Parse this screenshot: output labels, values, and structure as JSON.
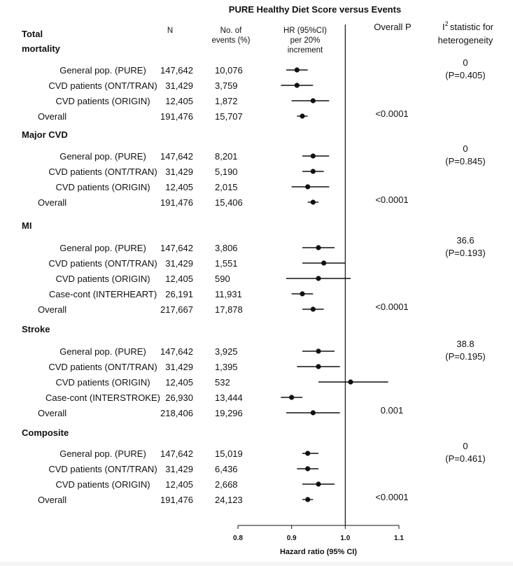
{
  "chart_data": {
    "type": "forest",
    "title": "PURE Healthy Diet Score versus Events",
    "columns": {
      "n": "N",
      "events": [
        "No. of",
        "events (%)"
      ],
      "hr": [
        "HR (95%CI)",
        "per 20%",
        "increment"
      ],
      "overall_p": "Overall P",
      "i2": [
        "statistic for",
        "heterogeneity"
      ],
      "i2_symbol": "I",
      "i2_superscript": "2"
    },
    "xlabel": "Hazard ratio (95% CI)",
    "xlim": [
      0.8,
      1.1
    ],
    "xticks": [
      "0.8",
      "0.9",
      "1.0",
      "1.1"
    ],
    "reference_line": 1.0,
    "groups": [
      {
        "name": [
          "Total",
          "mortality"
        ],
        "overall_p": "<0.0001",
        "i2": "0",
        "i2_p": "(P=0.405)",
        "rows": [
          {
            "label": "General pop. (PURE)",
            "n": "147,642",
            "events": "10,076",
            "hr": 0.91,
            "lo": 0.89,
            "hi": 0.93
          },
          {
            "label": "CVD patients (ONT/TRAN)",
            "n": "31,429",
            "events": "3,759",
            "hr": 0.91,
            "lo": 0.88,
            "hi": 0.94
          },
          {
            "label": "CVD patients (ORIGIN)",
            "n": "12,405",
            "events": "1,872",
            "hr": 0.94,
            "lo": 0.9,
            "hi": 0.97
          },
          {
            "label": "Overall",
            "n": "191,476",
            "events": "15,707",
            "hr": 0.92,
            "lo": 0.91,
            "hi": 0.93,
            "overall": true
          }
        ]
      },
      {
        "name": [
          "Major CVD"
        ],
        "overall_p": "<0.0001",
        "i2": "0",
        "i2_p": "(P=0.845)",
        "rows": [
          {
            "label": "General pop. (PURE)",
            "n": "147,642",
            "events": "8,201",
            "hr": 0.94,
            "lo": 0.92,
            "hi": 0.97
          },
          {
            "label": "CVD patients (ONT/TRAN)",
            "n": "31,429",
            "events": "5,190",
            "hr": 0.94,
            "lo": 0.92,
            "hi": 0.96
          },
          {
            "label": "CVD patients (ORIGIN)",
            "n": "12,405",
            "events": "2,015",
            "hr": 0.93,
            "lo": 0.9,
            "hi": 0.97
          },
          {
            "label": "Overall",
            "n": "191,476",
            "events": "15,406",
            "hr": 0.94,
            "lo": 0.93,
            "hi": 0.95,
            "overall": true
          }
        ]
      },
      {
        "name": [
          "MI"
        ],
        "overall_p": "<0.0001",
        "i2": "36.6",
        "i2_p": "(P=0.193)",
        "rows": [
          {
            "label": "General pop. (PURE)",
            "n": "147,642",
            "events": "3,806",
            "hr": 0.95,
            "lo": 0.92,
            "hi": 0.98
          },
          {
            "label": "CVD patients (ONT/TRAN)",
            "n": "31,429",
            "events": "1,551",
            "hr": 0.96,
            "lo": 0.92,
            "hi": 1.0
          },
          {
            "label": "CVD patients (ORIGIN)",
            "n": "12,405",
            "events": "590",
            "hr": 0.95,
            "lo": 0.89,
            "hi": 1.01
          },
          {
            "label": "Case-cont (INTERHEART)",
            "n": "26,191",
            "events": "11,931",
            "hr": 0.92,
            "lo": 0.9,
            "hi": 0.94
          },
          {
            "label": "Overall",
            "n": "217,667",
            "events": "17,878",
            "hr": 0.94,
            "lo": 0.92,
            "hi": 0.96,
            "overall": true
          }
        ]
      },
      {
        "name": [
          "Stroke"
        ],
        "overall_p": "0.001",
        "i2": "38.8",
        "i2_p": "(P=0.195)",
        "rows": [
          {
            "label": "General pop. (PURE)",
            "n": "147,642",
            "events": "3,925",
            "hr": 0.95,
            "lo": 0.92,
            "hi": 0.98
          },
          {
            "label": "CVD patients (ONT/TRAN)",
            "n": "31,429",
            "events": "1,395",
            "hr": 0.95,
            "lo": 0.91,
            "hi": 0.99
          },
          {
            "label": "CVD patients (ORIGIN)",
            "n": "12,405",
            "events": "532",
            "hr": 1.01,
            "lo": 0.95,
            "hi": 1.08
          },
          {
            "label": "Case-cont (INTERSTROKE)",
            "n": "26,930",
            "events": "13,444",
            "hr": 0.9,
            "lo": 0.88,
            "hi": 0.92
          },
          {
            "label": "Overall",
            "n": "218,406",
            "events": "19,296",
            "hr": 0.94,
            "lo": 0.89,
            "hi": 0.99,
            "overall": true
          }
        ]
      },
      {
        "name": [
          "Composite"
        ],
        "overall_p": "<0.0001",
        "i2": "0",
        "i2_p": "(P=0.461)",
        "rows": [
          {
            "label": "General pop. (PURE)",
            "n": "147,642",
            "events": "15,019",
            "hr": 0.93,
            "lo": 0.92,
            "hi": 0.95
          },
          {
            "label": "CVD patients (ONT/TRAN)",
            "n": "31,429",
            "events": "6,436",
            "hr": 0.93,
            "lo": 0.91,
            "hi": 0.95
          },
          {
            "label": "CVD patients (ORIGIN)",
            "n": "12,405",
            "events": "2,668",
            "hr": 0.95,
            "lo": 0.92,
            "hi": 0.98
          },
          {
            "label": "Overall",
            "n": "191,476",
            "events": "24,123",
            "hr": 0.93,
            "lo": 0.92,
            "hi": 0.94,
            "overall": true
          }
        ]
      }
    ]
  }
}
